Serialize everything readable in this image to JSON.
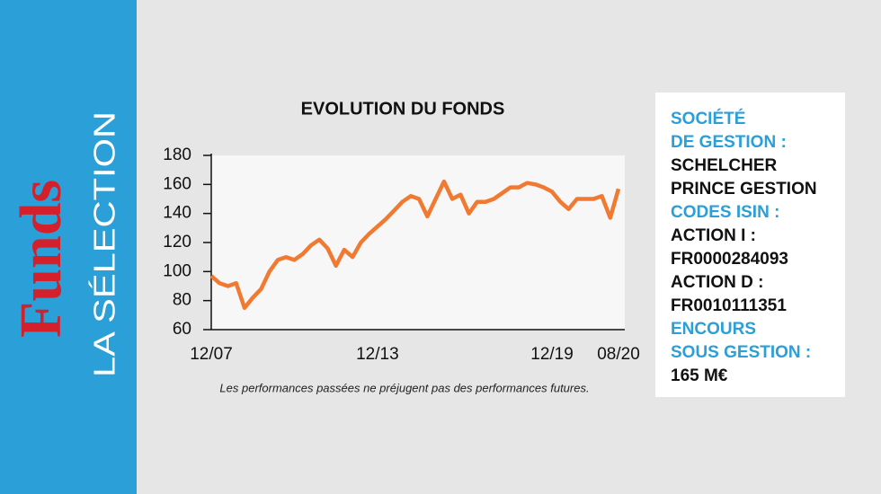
{
  "sidebar": {
    "brand": "Funds",
    "subtitle": "LA SÉLECTION"
  },
  "chart_data": {
    "type": "line",
    "title": "EVOLUTION DU FONDS",
    "categories": [
      "12/07",
      null,
      null,
      null,
      null,
      null,
      null,
      null,
      null,
      null,
      null,
      null,
      null,
      null,
      null,
      null,
      null,
      null,
      null,
      null,
      "12/13",
      null,
      null,
      null,
      null,
      null,
      null,
      null,
      null,
      null,
      null,
      null,
      null,
      null,
      null,
      null,
      null,
      null,
      null,
      null,
      null,
      "12/19",
      null,
      null,
      null,
      null,
      null,
      null,
      null,
      "08/20"
    ],
    "values": [
      97,
      92,
      90,
      92,
      75,
      82,
      88,
      100,
      108,
      110,
      108,
      112,
      118,
      122,
      116,
      104,
      115,
      110,
      120,
      126,
      131,
      136,
      142,
      148,
      152,
      150,
      138,
      150,
      162,
      150,
      153,
      140,
      148,
      148,
      150,
      154,
      158,
      158,
      161,
      160,
      158,
      155,
      148,
      143,
      150,
      150,
      150,
      152,
      137,
      157
    ],
    "color": "#f07a32",
    "ylim": [
      60,
      180
    ],
    "yticks": [
      60,
      80,
      100,
      120,
      140,
      160,
      180
    ],
    "grid": false,
    "note": "Les performances passées ne préjugent pas des performances futures."
  },
  "info": {
    "sections": [
      {
        "heading": [
          "SOCIÉTÉ",
          "DE GESTION :"
        ],
        "body": [
          "SCHELCHER",
          "PRINCE GESTION"
        ]
      },
      {
        "heading": [
          "CODES ISIN :"
        ],
        "body": [
          "ACTION I :",
          "FR0000284093",
          "ACTION D :",
          "FR0010111351"
        ]
      },
      {
        "heading": [
          "ENCOURS",
          "SOUS GESTION :"
        ],
        "body": [
          "165 M€"
        ]
      }
    ]
  }
}
